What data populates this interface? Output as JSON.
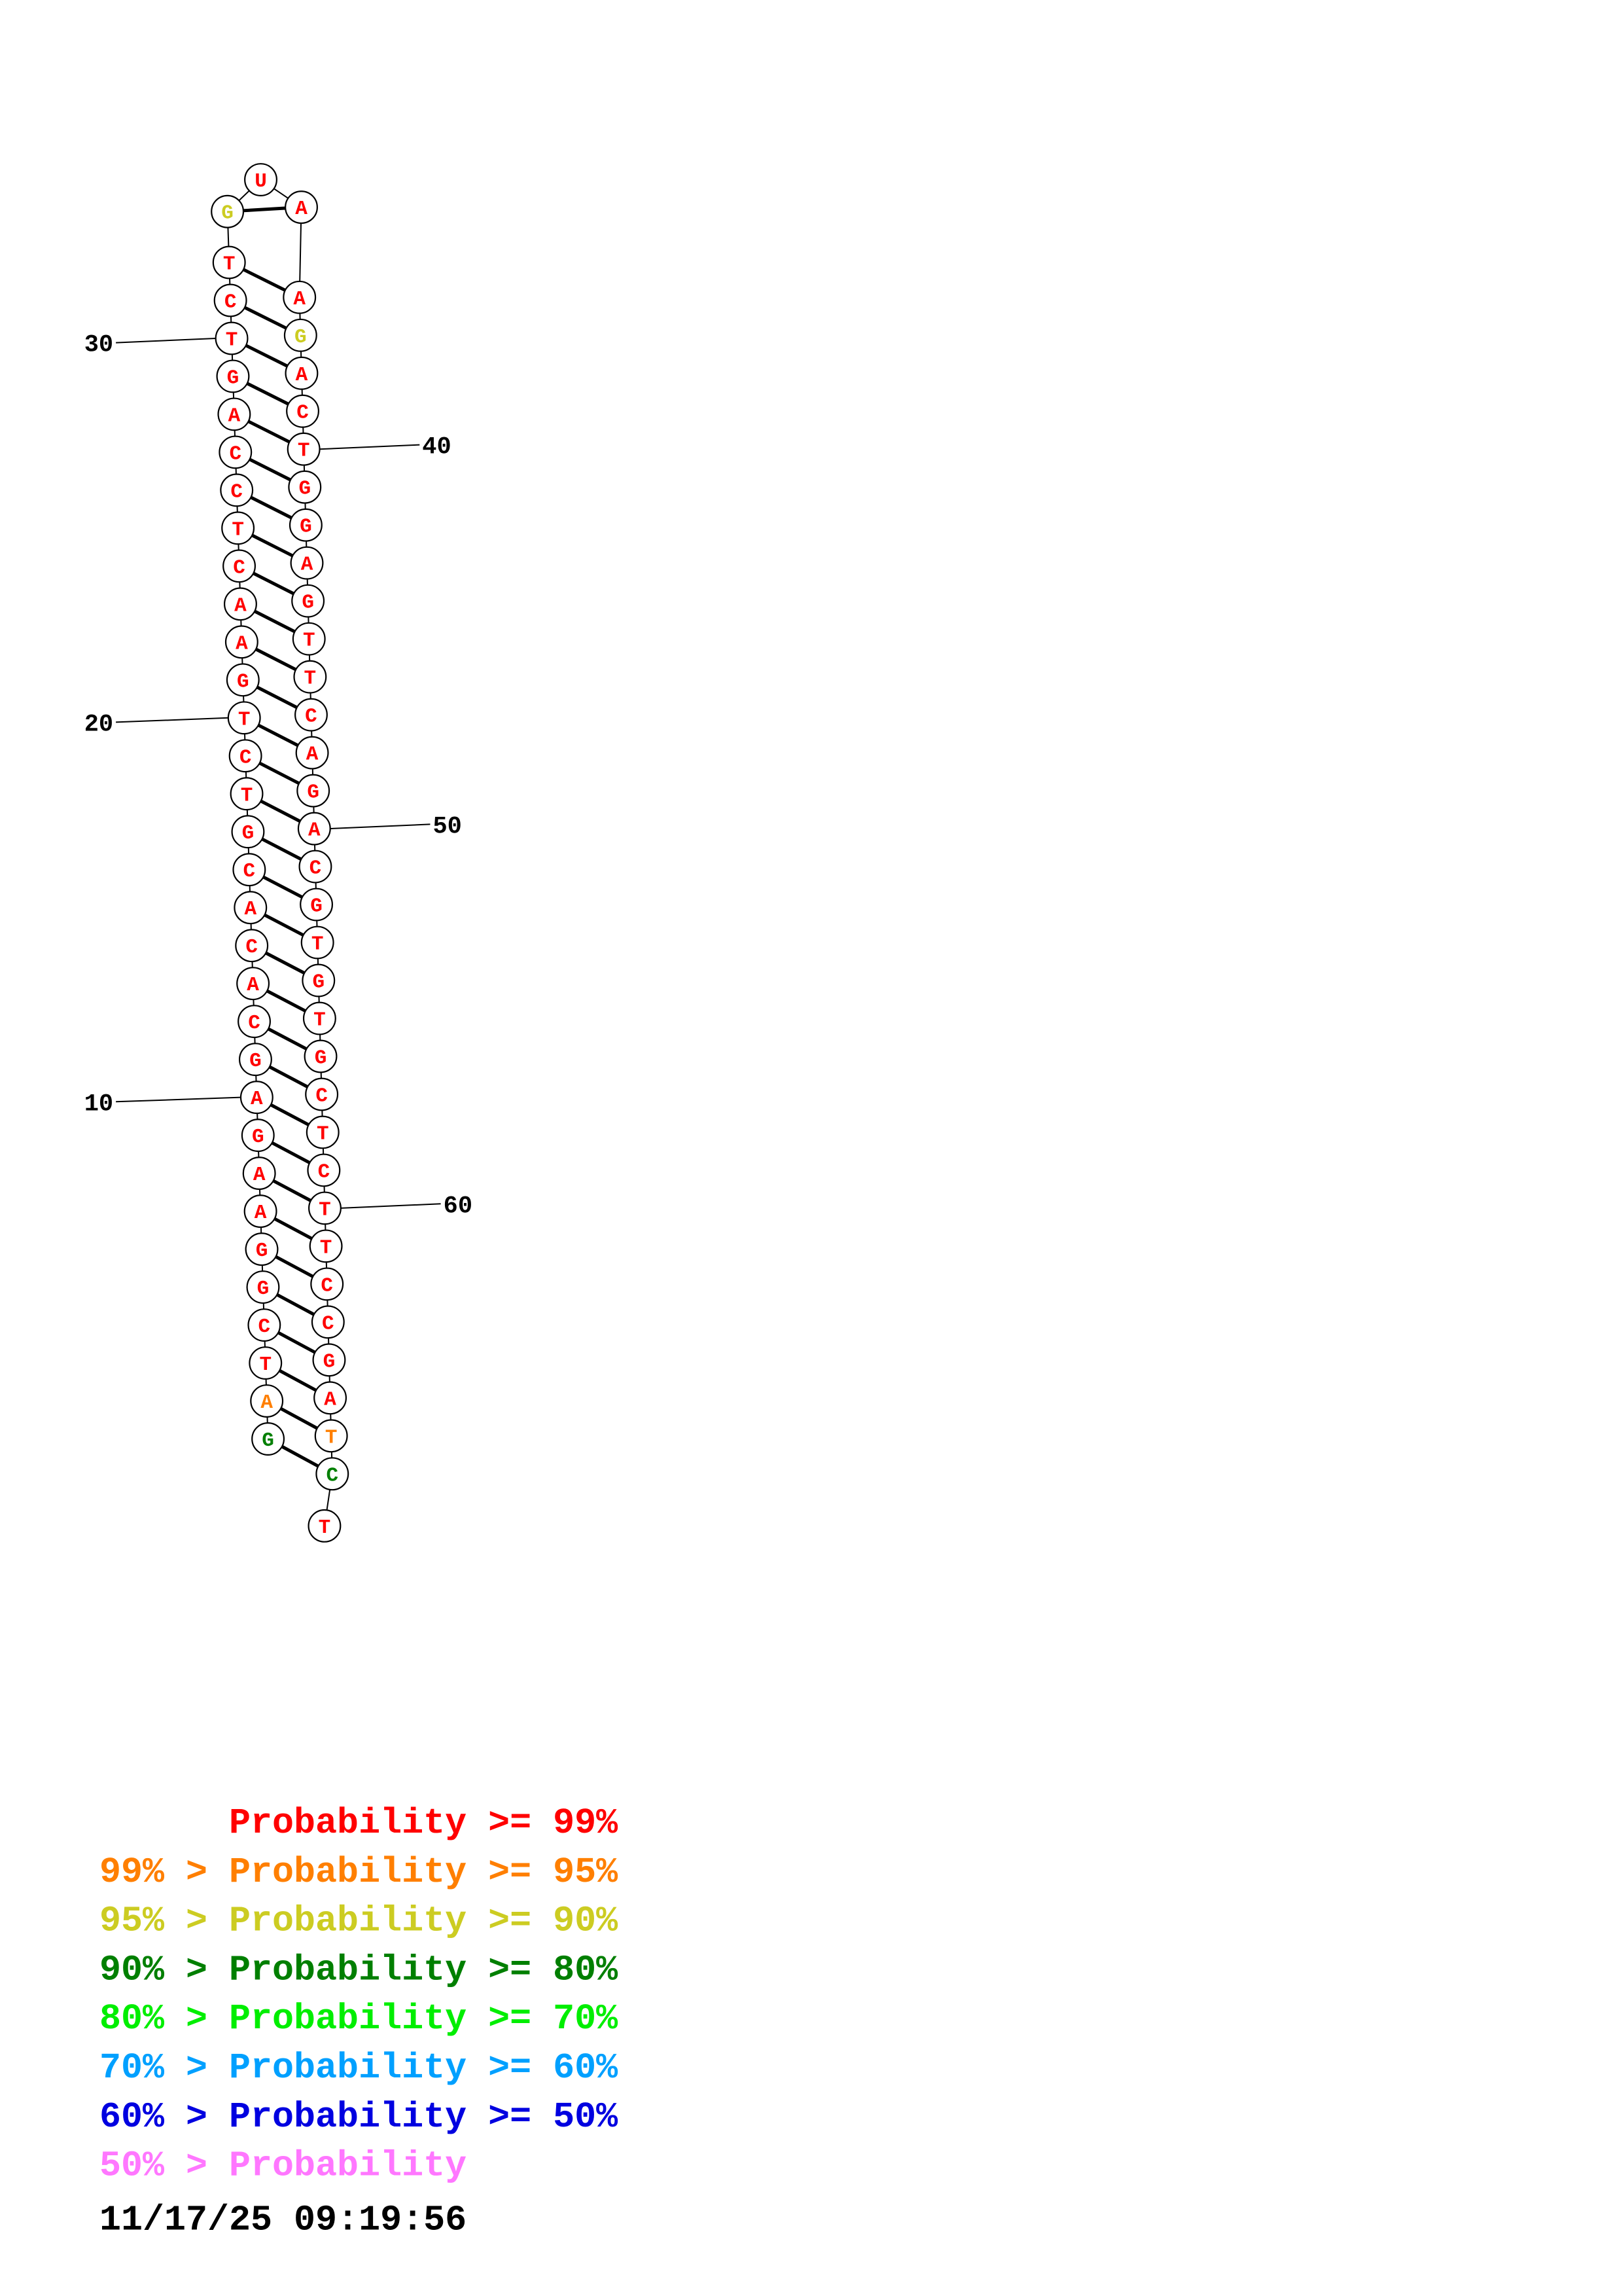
{
  "sequence": [
    "G",
    "A",
    "T",
    "C",
    "G",
    "G",
    "A",
    "A",
    "G",
    "A",
    "G",
    "C",
    "A",
    "C",
    "A",
    "C",
    "G",
    "T",
    "C",
    "T",
    "G",
    "A",
    "A",
    "C",
    "T",
    "C",
    "C",
    "A",
    "G",
    "T",
    "C",
    "T",
    "G",
    "U",
    "A",
    "A",
    "G",
    "A",
    "C",
    "T",
    "G",
    "G",
    "A",
    "G",
    "T",
    "T",
    "C",
    "A",
    "G",
    "A",
    "C",
    "G",
    "T",
    "G",
    "T",
    "G",
    "C",
    "T",
    "C",
    "T",
    "T",
    "C",
    "C",
    "G",
    "A",
    "T",
    "C",
    "T"
  ],
  "probability_class": [
    3,
    1,
    0,
    0,
    0,
    0,
    0,
    0,
    0,
    0,
    0,
    0,
    0,
    0,
    0,
    0,
    0,
    0,
    0,
    0,
    0,
    0,
    0,
    0,
    0,
    0,
    0,
    0,
    0,
    0,
    0,
    0,
    2,
    0,
    0,
    0,
    2,
    0,
    0,
    0,
    0,
    0,
    0,
    0,
    0,
    0,
    0,
    0,
    0,
    0,
    0,
    0,
    0,
    0,
    0,
    0,
    0,
    0,
    0,
    0,
    0,
    0,
    0,
    0,
    0,
    1,
    3,
    0
  ],
  "base_pairs": [
    [
      1,
      67
    ],
    [
      2,
      66
    ],
    [
      3,
      65
    ],
    [
      4,
      64
    ],
    [
      5,
      63
    ],
    [
      6,
      62
    ],
    [
      7,
      61
    ],
    [
      8,
      60
    ],
    [
      9,
      59
    ],
    [
      10,
      58
    ],
    [
      11,
      57
    ],
    [
      12,
      56
    ],
    [
      13,
      55
    ],
    [
      14,
      54
    ],
    [
      15,
      53
    ],
    [
      16,
      52
    ],
    [
      17,
      51
    ],
    [
      18,
      50
    ],
    [
      19,
      49
    ],
    [
      20,
      48
    ],
    [
      21,
      47
    ],
    [
      22,
      46
    ],
    [
      23,
      45
    ],
    [
      24,
      44
    ],
    [
      25,
      43
    ],
    [
      26,
      42
    ],
    [
      27,
      41
    ],
    [
      28,
      40
    ],
    [
      29,
      39
    ],
    [
      30,
      38
    ],
    [
      31,
      37
    ],
    [
      32,
      36
    ],
    [
      33,
      35
    ]
  ],
  "position_labels": [
    {
      "index": 10,
      "text": "10"
    },
    {
      "index": 20,
      "text": "20"
    },
    {
      "index": 30,
      "text": "30"
    },
    {
      "index": 40,
      "text": "40"
    },
    {
      "index": 50,
      "text": "50"
    },
    {
      "index": 60,
      "text": "60"
    }
  ],
  "legend": [
    {
      "prefix": "",
      "label": "Probability",
      "suffix": ">= 99%",
      "color": "#ff0000"
    },
    {
      "prefix": "99% >",
      "label": "Probability",
      "suffix": ">= 95%",
      "color": "#ff7f00"
    },
    {
      "prefix": "95% >",
      "label": "Probability",
      "suffix": ">= 90%",
      "color": "#cccc22"
    },
    {
      "prefix": "90% >",
      "label": "Probability",
      "suffix": ">= 80%",
      "color": "#007f00"
    },
    {
      "prefix": "80% >",
      "label": "Probability",
      "suffix": ">= 70%",
      "color": "#00ee00"
    },
    {
      "prefix": "70% >",
      "label": "Probability",
      "suffix": ">= 60%",
      "color": "#00a0ff"
    },
    {
      "prefix": "60% >",
      "label": "Probability",
      "suffix": ">= 50%",
      "color": "#0000e0"
    },
    {
      "prefix": "50% >",
      "label": "Probability",
      "suffix": "",
      "color": "#ff77ff"
    }
  ],
  "timestamp": "11/17/25 09:19:56"
}
